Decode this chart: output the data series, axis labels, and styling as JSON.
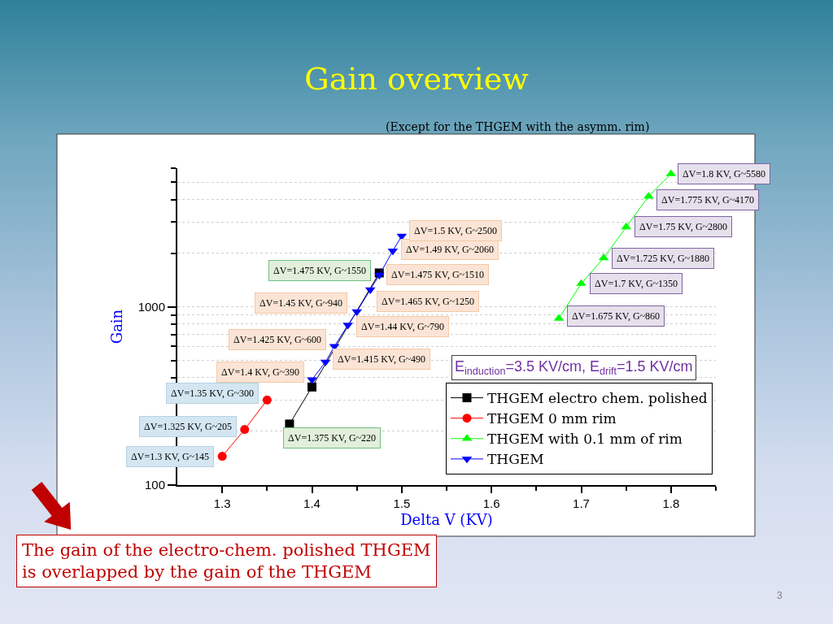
{
  "chart_data": {
    "type": "line",
    "title": "Gain overview",
    "subtitle": "(Except for the THGEM with the asymm. rim)",
    "xlabel": "Delta V (KV)",
    "ylabel": "Gain",
    "annotations": [
      "E$_{induction}$=3.5 KV/cm, E$_{drift}$=1.5 KV/cm",
      "The gain of the electro-chem. polished THGEM\nis overlapped by the gain of the THGEM",
      "3"
    ],
    "log": "y",
    "grid": "y",
    "legend": "bottom right",
    "line_style": "solid",
    "xlim": [
      1.25,
      1.85
    ],
    "xticks": [
      1.3,
      {
        "value": 1.35,
        "label": null
      },
      1.4,
      {
        "value": 1.45,
        "label": null
      },
      1.5,
      {
        "value": 1.55,
        "label": null
      },
      1.6,
      {
        "value": 1.65,
        "label": null
      },
      1.7,
      {
        "value": 1.75,
        "label": null
      },
      1.8,
      {
        "value": 1.85,
        "label": null
      }
    ],
    "ylim": [
      100,
      6000
    ],
    "yticks": [
      100,
      {
        "value": 200,
        "label": null
      },
      {
        "value": 300,
        "label": null
      },
      {
        "value": 400,
        "label": null
      },
      {
        "value": 500,
        "label": null
      },
      {
        "value": 600,
        "label": null
      },
      {
        "value": 700,
        "label": null
      },
      {
        "value": 800,
        "label": null
      },
      {
        "value": 900,
        "label": null
      },
      1000,
      {
        "value": 2000,
        "label": null
      },
      {
        "value": 3000,
        "label": null
      },
      {
        "value": 4000,
        "label": null
      },
      {
        "value": 5000,
        "label": null
      },
      {
        "value": 6000,
        "label": null
      }
    ],
    "series": [
      {
        "name": "THGEM electro chem. polished",
        "color": "#000000",
        "marker": "square",
        "x": [
          1.375,
          1.4,
          1.475
        ],
        "values": [
          220,
          355,
          1550
        ],
        "value_labels": [
          "ΔV=1.375 KV, G~220",
          null,
          "ΔV=1.475 KV, G~1550"
        ]
      },
      {
        "name": "THGEM 0 mm rim",
        "color": "#ff0000",
        "marker": "circle",
        "x": [
          1.3,
          1.325,
          1.35
        ],
        "values": [
          145,
          205,
          300
        ],
        "value_labels": [
          "ΔV=1.3 KV, G~145",
          "ΔV=1.325 KV, G~205",
          "ΔV=1.35 KV, G~300"
        ]
      },
      {
        "name": "THGEM with 0.1 mm of rim",
        "color": "#00ff00",
        "marker": "triangle",
        "x": [
          1.675,
          1.7,
          1.725,
          1.75,
          1.775,
          1.8
        ],
        "values": [
          860,
          1350,
          1880,
          2800,
          4170,
          5580
        ],
        "value_labels": [
          "ΔV=1.675 KV, G~860",
          "ΔV=1.7 KV, G~1350",
          "ΔV=1.725 KV, G~1880",
          "ΔV=1.75 KV, G~2800",
          "ΔV=1.775 KV, G~4170",
          "ΔV=1.8 KV, G~5580"
        ]
      },
      {
        "name": "THGEM",
        "color": "#0000ff",
        "marker": "triangle-down",
        "x": [
          1.4,
          1.415,
          1.425,
          1.44,
          1.45,
          1.465,
          1.475,
          1.49,
          1.5
        ],
        "values": [
          390,
          490,
          600,
          790,
          940,
          1250,
          1510,
          2060,
          2500
        ],
        "value_labels": [
          "ΔV=1.4 KV, G~390",
          "ΔV=1.415 KV, G~490",
          "ΔV=1.425 KV, G~600",
          "ΔV=1.44 KV, G~790",
          "ΔV=1.45 KV, G~940",
          "ΔV=1.465 KV, G~1250",
          "ΔV=1.475 KV, G~1510",
          "ΔV=1.49 KV, G~2060",
          "ΔV=1.5 KV, G~2500"
        ]
      }
    ]
  }
}
